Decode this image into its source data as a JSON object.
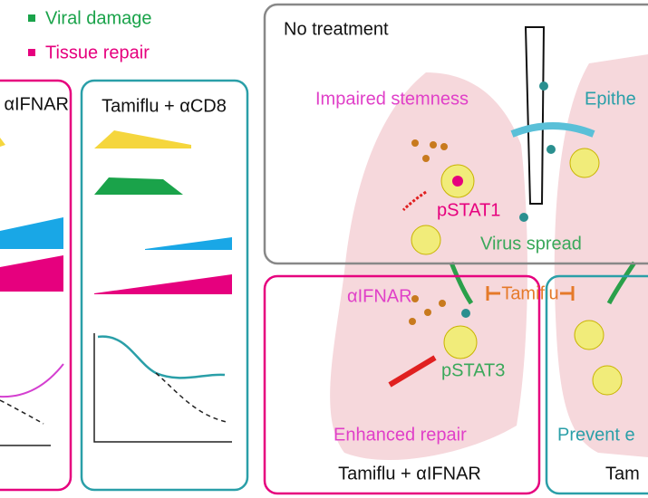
{
  "legend": [
    {
      "label": "Viral damage"
    },
    {
      "label": "Tissue repair"
    }
  ],
  "panels": [
    {
      "title": "αIFNAR"
    },
    {
      "title": "Tamiflu + αCD8"
    }
  ],
  "no_treatment": {
    "title": "No treatment",
    "labels": [
      "Impaired stemness",
      "Epithe",
      "pSTAT1",
      "Virus spread"
    ]
  },
  "treatment_middle": {
    "labels": [
      "αIFNAR",
      "Tamiflu",
      "pSTAT3",
      "Enhanced repair"
    ],
    "title": "Tamiflu + αIFNAR"
  },
  "treatment_right": {
    "labels": [
      "Prevent e"
    ],
    "title": "Tam"
  }
}
